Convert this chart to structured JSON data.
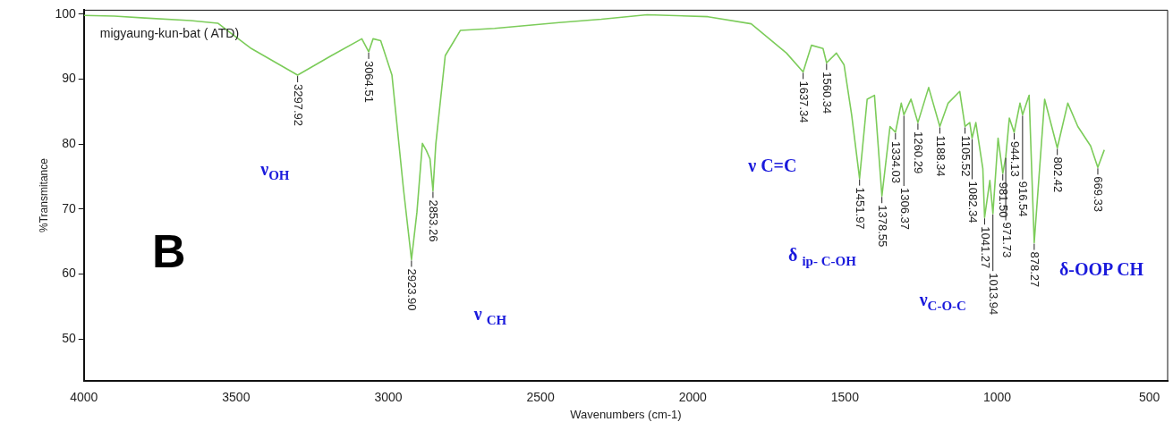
{
  "chart_data": {
    "type": "line",
    "title": "migyaung-kun-bat ( ATD)",
    "xlabel": "Wavenumbers (cm-1)",
    "ylabel": "%Transmitance",
    "xlim": [
      4000,
      440
    ],
    "ylim": [
      43.6,
      100.6
    ],
    "xticks": [
      4000,
      3500,
      3000,
      2500,
      2000,
      1500,
      1000,
      500
    ],
    "yticks": [
      50,
      60,
      70,
      80,
      90,
      100
    ],
    "grid": false,
    "legend": false,
    "marker": "none",
    "line_style": "solid",
    "x": [
      4000,
      3900,
      3800,
      3650,
      3560,
      3450,
      3297.92,
      3187,
      3087,
      3064.51,
      3050,
      3025,
      2988,
      2950,
      2923.9,
      2906,
      2888,
      2875,
      2863,
      2853.26,
      2844,
      2813,
      2763,
      2651,
      2439,
      2300,
      2150,
      1950,
      1808,
      1692,
      1637.34,
      1610,
      1572,
      1560.34,
      1528,
      1503,
      1478,
      1451.97,
      1427,
      1403,
      1378.55,
      1352,
      1334.03,
      1315,
      1306.37,
      1283,
      1260.29,
      1225,
      1188.34,
      1161,
      1123,
      1105.52,
      1090,
      1082.34,
      1070,
      1047,
      1041.27,
      1024,
      1013.94,
      997,
      981.5,
      971.73,
      960,
      944.13,
      925,
      916.54,
      895,
      878.27,
      844,
      802.42,
      768,
      735,
      693,
      669.33,
      648
    ],
    "series": [
      {
        "color": "#7ccc5a",
        "values": [
          99.8,
          99.7,
          99.4,
          99.0,
          98.6,
          94.7,
          90.6,
          93.6,
          96.2,
          94.2,
          96.2,
          95.9,
          90.6,
          73,
          62.2,
          69.5,
          80.1,
          79,
          77.7,
          72.8,
          80,
          93.6,
          97.5,
          97.8,
          98.7,
          99.2,
          99.9,
          99.6,
          98.5,
          94,
          91.1,
          95.2,
          94.7,
          92.5,
          94,
          92.2,
          84.5,
          74.7,
          86.9,
          87.5,
          72,
          82.7,
          81.8,
          86.3,
          84.5,
          86.9,
          83.3,
          88.7,
          82.7,
          86.3,
          88.1,
          82.7,
          83.3,
          80.9,
          83.3,
          76.2,
          68.7,
          74.4,
          69.3,
          80.9,
          75.5,
          78,
          84,
          81.8,
          86.3,
          84.5,
          87.5,
          64.8,
          86.9,
          79.4,
          86.3,
          82.7,
          79.7,
          76.4,
          79.1
        ]
      }
    ],
    "annotations": [
      "B",
      "ν$_{OH}$",
      "ν $_{CH}$",
      "ν  C=C",
      "δ $_{ip- C-OH}$",
      "ν$_{C-O-C}$",
      "δ-OOP CH",
      {
        "text": "3297.92",
        "x": 3297.92,
        "y": 90.6
      },
      {
        "text": "3064.51",
        "x": 3064.51,
        "y": 94.2
      },
      {
        "text": "2923.90",
        "x": 2923.9,
        "y": 62.2
      },
      {
        "text": "2853.26",
        "x": 2853.26,
        "y": 72.8
      },
      {
        "text": "1637.34",
        "x": 1637.34,
        "y": 91.1
      },
      {
        "text": "1560.34",
        "x": 1560.34,
        "y": 92.5
      },
      {
        "text": "1451.97",
        "x": 1451.97,
        "y": 74.7
      },
      {
        "text": "1378.55",
        "x": 1378.55,
        "y": 72
      },
      {
        "text": "1334.03",
        "x": 1334.03,
        "y": 81.8
      },
      {
        "text": "1306.37",
        "x": 1306.37,
        "y": 84.5
      },
      {
        "text": "1260.29",
        "x": 1260.29,
        "y": 83.3
      },
      {
        "text": "1188.34",
        "x": 1188.34,
        "y": 82.7
      },
      {
        "text": "1105.52",
        "x": 1105.52,
        "y": 82.7
      },
      {
        "text": "1082.34",
        "x": 1082.34,
        "y": 80.9
      },
      {
        "text": "1041.27",
        "x": 1041.27,
        "y": 68.7
      },
      {
        "text": "1013.94",
        "x": 1013.94,
        "y": 69.3
      },
      {
        "text": "981.50",
        "x": 981.5,
        "y": 75.5
      },
      {
        "text": "971.73",
        "x": 971.73,
        "y": 78
      },
      {
        "text": "944.13",
        "x": 944.13,
        "y": 81.8
      },
      {
        "text": "916.54",
        "x": 916.54,
        "y": 84.5
      },
      {
        "text": "878.27",
        "x": 878.27,
        "y": 64.8
      },
      {
        "text": "802.42",
        "x": 802.42,
        "y": 79.4
      },
      {
        "text": "669.33",
        "x": 669.33,
        "y": 76.4
      }
    ]
  }
}
